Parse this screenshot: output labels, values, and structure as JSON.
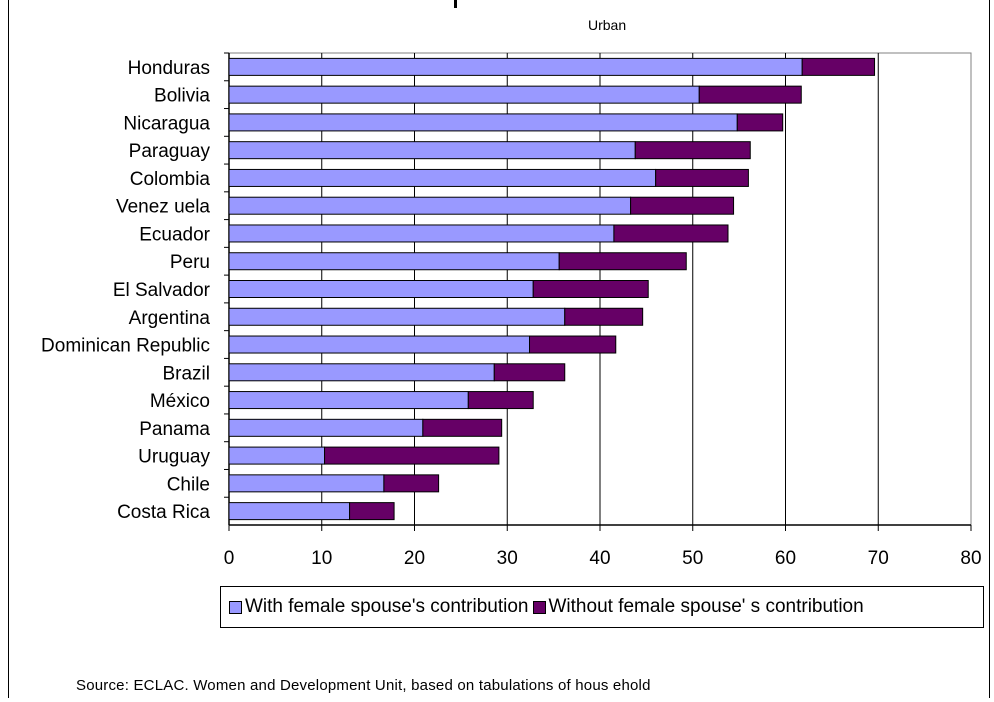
{
  "chart_data": {
    "type": "bar",
    "orientation": "horizontal",
    "stacked": true,
    "title": "Urban",
    "categories": [
      "Honduras",
      "Bolivia",
      "Nicaragua",
      "Paraguay",
      "Colombia",
      "Venez uela",
      "Ecuador",
      "Peru",
      "El Salvador",
      "Argentina",
      "Dominican Republic",
      "Brazil",
      "México",
      "Panama",
      "Uruguay",
      "Chile",
      "Costa Rica"
    ],
    "series": [
      {
        "name": "With female spouse's contribution",
        "color": "#9999ff",
        "values": [
          61.8,
          50.7,
          54.8,
          43.8,
          46.0,
          43.3,
          41.5,
          35.6,
          32.8,
          36.2,
          32.4,
          28.6,
          25.8,
          20.9,
          10.3,
          16.7,
          13.0
        ]
      },
      {
        "name": "Without female spouse' s contribution",
        "color": "#660066",
        "values": [
          7.8,
          11.0,
          4.9,
          12.4,
          10.0,
          11.1,
          12.3,
          13.7,
          12.4,
          8.4,
          9.3,
          7.6,
          7.0,
          8.5,
          18.8,
          5.9,
          4.8
        ]
      }
    ],
    "xlim": [
      0,
      80
    ],
    "xticks": [
      0,
      10,
      20,
      30,
      40,
      50,
      60,
      70,
      80
    ],
    "grid": "vertical major gridlines",
    "legend_position": "bottom"
  },
  "source": "Source: ECLAC. Women and Development Unit, based on tabulations of hous ehold",
  "colors": {
    "plot_background": "#ffffff",
    "gridline": "#000000"
  }
}
